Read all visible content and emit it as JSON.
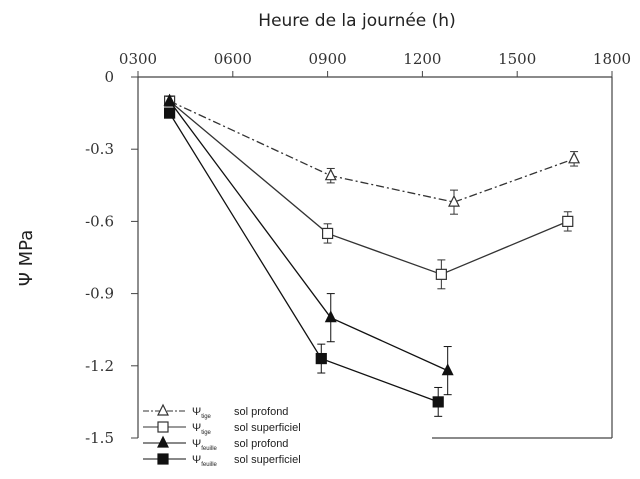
{
  "chart_data": {
    "type": "line",
    "title": "",
    "xlabel": "Heure de la journée (h)",
    "ylabel": "Ψ MPa",
    "x_axis_position": "top",
    "xlim": [
      300,
      1800
    ],
    "ylim": [
      -1.5,
      0
    ],
    "x_ticks": [
      {
        "value": 300,
        "label": "0300"
      },
      {
        "value": 600,
        "label": "0600"
      },
      {
        "value": 900,
        "label": "0900"
      },
      {
        "value": 1200,
        "label": "1200"
      },
      {
        "value": 1500,
        "label": "1500"
      },
      {
        "value": 1800,
        "label": "1800"
      }
    ],
    "y_ticks": [
      {
        "value": 0,
        "label": "0"
      },
      {
        "value": -0.3,
        "label": "-0.3"
      },
      {
        "value": -0.6,
        "label": "-0.6"
      },
      {
        "value": -0.9,
        "label": "-0.9"
      },
      {
        "value": -1.2,
        "label": "-1.2"
      },
      {
        "value": -1.5,
        "label": "-1.5"
      }
    ],
    "grid": false,
    "legend_position": "bottom-left",
    "series": [
      {
        "key": "tige-profond",
        "symbol": "Ψ",
        "subscript": "tige",
        "label": "sol profond",
        "marker": "triangle-open",
        "line": "dashdot",
        "color": "#333333",
        "x": [
          400,
          910,
          1300,
          1680
        ],
        "y": [
          -0.1,
          -0.41,
          -0.52,
          -0.34
        ],
        "err": [
          0.02,
          0.03,
          0.05,
          0.03
        ]
      },
      {
        "key": "tige-superficiel",
        "symbol": "Ψ",
        "subscript": "tige",
        "label": "sol superficiel",
        "marker": "square-open",
        "line": "solid",
        "color": "#333333",
        "x": [
          400,
          900,
          1260,
          1660
        ],
        "y": [
          -0.1,
          -0.65,
          -0.82,
          -0.6
        ],
        "err": [
          0.02,
          0.04,
          0.06,
          0.04
        ]
      },
      {
        "key": "feuille-profond",
        "symbol": "Ψ",
        "subscript": "feuille",
        "label": "sol profond",
        "marker": "triangle-filled",
        "line": "solid",
        "color": "#111111",
        "x": [
          400,
          910,
          1280
        ],
        "y": [
          -0.1,
          -1.0,
          -1.22
        ],
        "err": [
          0.02,
          0.1,
          0.1
        ]
      },
      {
        "key": "feuille-superficiel",
        "symbol": "Ψ",
        "subscript": "feuille",
        "label": "sol superficiel",
        "marker": "square-filled",
        "line": "solid",
        "color": "#111111",
        "x": [
          400,
          880,
          1250
        ],
        "y": [
          -0.15,
          -1.17,
          -1.35
        ],
        "err": [
          0.02,
          0.06,
          0.06
        ]
      }
    ]
  }
}
